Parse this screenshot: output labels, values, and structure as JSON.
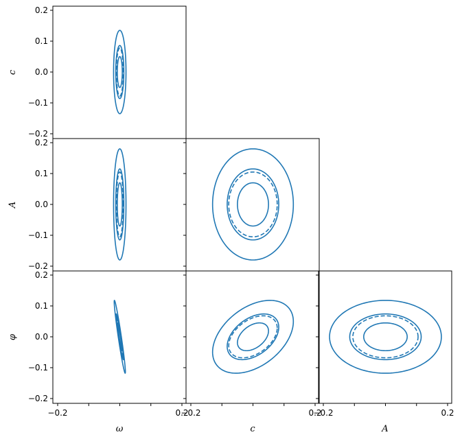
{
  "chart_data": {
    "type": "corner_contour",
    "color": "#1f77b4",
    "parameters": [
      "ω",
      "c",
      "A",
      "φ"
    ],
    "axis_range": [
      -0.2,
      0.2
    ],
    "ticks": [
      -0.2,
      -0.1,
      0.0,
      0.1,
      0.2
    ],
    "tick_labels": [
      "−0.2",
      "−0.1",
      "0.0",
      "0.1",
      "0.2"
    ],
    "x_tick_labels": [
      "−0.2",
      "0.2"
    ],
    "panels": [
      {
        "id": "omega-c",
        "x_param": "ω",
        "y_param": "c",
        "contours": [
          {
            "cx": 0.0,
            "cy": 0.0,
            "sx": 0.02,
            "sy": 0.135,
            "rho": 0.0,
            "dashed": false
          },
          {
            "cx": 0.0,
            "cy": 0.0,
            "sx": 0.013,
            "sy": 0.086,
            "rho": 0.0,
            "dashed": false
          },
          {
            "cx": 0.0,
            "cy": 0.0,
            "sx": 0.011,
            "sy": 0.078,
            "rho": 0.0,
            "dashed": true
          },
          {
            "cx": 0.0,
            "cy": 0.0,
            "sx": 0.008,
            "sy": 0.05,
            "rho": 0.0,
            "dashed": false
          }
        ]
      },
      {
        "id": "omega-A",
        "x_param": "ω",
        "y_param": "A",
        "contours": [
          {
            "cx": 0.0,
            "cy": 0.0,
            "sx": 0.02,
            "sy": 0.18,
            "rho": 0.0,
            "dashed": false
          },
          {
            "cx": 0.0,
            "cy": 0.0,
            "sx": 0.013,
            "sy": 0.115,
            "rho": 0.0,
            "dashed": false
          },
          {
            "cx": 0.0,
            "cy": 0.0,
            "sx": 0.011,
            "sy": 0.105,
            "rho": 0.0,
            "dashed": true
          },
          {
            "cx": 0.0,
            "cy": 0.0,
            "sx": 0.008,
            "sy": 0.07,
            "rho": 0.0,
            "dashed": false
          }
        ]
      },
      {
        "id": "c-A",
        "x_param": "c",
        "y_param": "A",
        "contours": [
          {
            "cx": 0.0,
            "cy": 0.0,
            "sx": 0.13,
            "sy": 0.18,
            "rho": 0.0,
            "dashed": false
          },
          {
            "cx": 0.0,
            "cy": 0.0,
            "sx": 0.083,
            "sy": 0.115,
            "rho": 0.0,
            "dashed": false
          },
          {
            "cx": 0.0,
            "cy": 0.0,
            "sx": 0.078,
            "sy": 0.105,
            "rho": 0.0,
            "dashed": true
          },
          {
            "cx": 0.0,
            "cy": 0.0,
            "sx": 0.05,
            "sy": 0.07,
            "rho": 0.0,
            "dashed": false
          }
        ]
      },
      {
        "id": "omega-phi",
        "x_param": "ω",
        "y_param": "φ",
        "contours": [
          {
            "cx": 0.0,
            "cy": 0.0,
            "sx": 0.018,
            "sy": 0.118,
            "rho": -0.96,
            "dashed": false
          },
          {
            "cx": 0.0,
            "cy": 0.0,
            "sx": 0.012,
            "sy": 0.074,
            "rho": -0.96,
            "dashed": false
          },
          {
            "cx": 0.0,
            "cy": 0.0,
            "sx": 0.01,
            "sy": 0.068,
            "rho": -0.96,
            "dashed": true
          },
          {
            "cx": 0.0,
            "cy": 0.0,
            "sx": 0.007,
            "sy": 0.045,
            "rho": -0.96,
            "dashed": false
          }
        ]
      },
      {
        "id": "c-phi",
        "x_param": "c",
        "y_param": "φ",
        "contours": [
          {
            "cx": 0.0,
            "cy": 0.0,
            "sx": 0.13,
            "sy": 0.118,
            "rho": 0.42,
            "dashed": false
          },
          {
            "cx": 0.0,
            "cy": 0.0,
            "sx": 0.083,
            "sy": 0.074,
            "rho": 0.42,
            "dashed": false
          },
          {
            "cx": 0.0,
            "cy": 0.0,
            "sx": 0.078,
            "sy": 0.068,
            "rho": 0.42,
            "dashed": true
          },
          {
            "cx": 0.0,
            "cy": 0.0,
            "sx": 0.05,
            "sy": 0.045,
            "rho": 0.42,
            "dashed": false
          }
        ]
      },
      {
        "id": "A-phi",
        "x_param": "A",
        "y_param": "φ",
        "contours": [
          {
            "cx": 0.0,
            "cy": 0.0,
            "sx": 0.18,
            "sy": 0.118,
            "rho": 0.0,
            "dashed": false
          },
          {
            "cx": 0.0,
            "cy": 0.0,
            "sx": 0.115,
            "sy": 0.074,
            "rho": 0.0,
            "dashed": false
          },
          {
            "cx": 0.0,
            "cy": 0.0,
            "sx": 0.105,
            "sy": 0.068,
            "rho": 0.0,
            "dashed": true
          },
          {
            "cx": 0.0,
            "cy": 0.0,
            "sx": 0.07,
            "sy": 0.045,
            "rho": 0.0,
            "dashed": false
          }
        ]
      }
    ]
  }
}
